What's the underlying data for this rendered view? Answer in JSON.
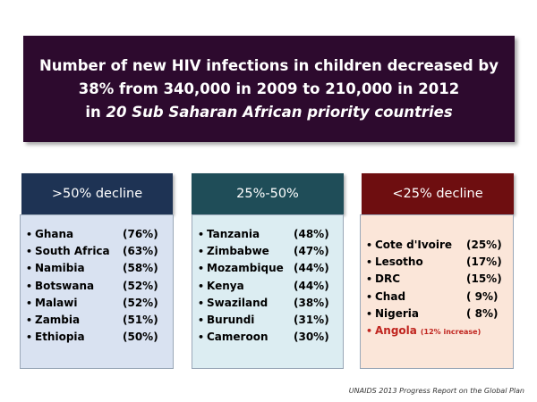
{
  "banner": {
    "line1": "Number of new HIV infections in children decreased by",
    "line2": "38% from 340,000 in 2009 to 210,000 in 2012",
    "line3_prefix": "in",
    "line3_italic": "20 Sub Saharan African priority countries"
  },
  "columns": [
    {
      "heading": ">50% decline",
      "items": [
        {
          "country": "Ghana",
          "pct": "(76%)"
        },
        {
          "country": "South Africa",
          "pct": "(63%)"
        },
        {
          "country": "Namibia",
          "pct": "(58%)"
        },
        {
          "country": "Botswana",
          "pct": "(52%)"
        },
        {
          "country": "Malawi",
          "pct": "(52%)"
        },
        {
          "country": "Zambia",
          "pct": "(51%)"
        },
        {
          "country": "Ethiopia",
          "pct": "(50%)"
        }
      ]
    },
    {
      "heading": "25%-50%",
      "items": [
        {
          "country": "Tanzania",
          "pct": "(48%)"
        },
        {
          "country": "Zimbabwe",
          "pct": "(47%)"
        },
        {
          "country": "Mozambique",
          "pct": "(44%)"
        },
        {
          "country": "Kenya",
          "pct": "(44%)"
        },
        {
          "country": "Swaziland",
          "pct": "(38%)"
        },
        {
          "country": "Burundi",
          "pct": "(31%)"
        },
        {
          "country": "Cameroon",
          "pct": "(30%)"
        }
      ]
    },
    {
      "heading": "<25% decline",
      "items": [
        {
          "country": "Cote d'Ivoire",
          "pct": "(25%)"
        },
        {
          "country": "Lesotho",
          "pct": "(17%)"
        },
        {
          "country": "DRC",
          "pct": "(15%)"
        },
        {
          "country": "Chad",
          "pct": "( 9%)"
        },
        {
          "country": "Nigeria",
          "pct": "( 8%)"
        }
      ],
      "highlight": {
        "country": "Angola",
        "note": "(12% increase)",
        "color": "#c0251f"
      }
    }
  ],
  "source": "UNAIDS 2013 Progress Report  on the Global Plan",
  "colors": {
    "banner_bg": "#2d0a2e",
    "col1_head": "#1e3354",
    "col2_head": "#1f4d58",
    "col3_head": "#6e0e10"
  }
}
